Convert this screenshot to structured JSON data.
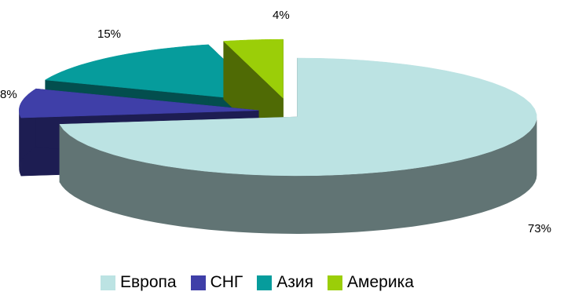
{
  "chart_data": {
    "type": "pie",
    "title": "",
    "style": "exploded-3d",
    "legend_position": "bottom",
    "slices": [
      {
        "name": "Европа",
        "value": 73,
        "label": "73%",
        "color": "#bce3e3",
        "side_color": "#617474"
      },
      {
        "name": "СНГ",
        "value": 8,
        "label": "8%",
        "color": "#3f3fa8",
        "side_color": "#1d1d52"
      },
      {
        "name": "Азия",
        "value": 15,
        "label": "15%",
        "color": "#069c9c",
        "side_color": "#034e4e"
      },
      {
        "name": "Америка",
        "value": 4,
        "label": "4%",
        "color": "#9bce08",
        "side_color": "#4f6a05"
      }
    ]
  }
}
